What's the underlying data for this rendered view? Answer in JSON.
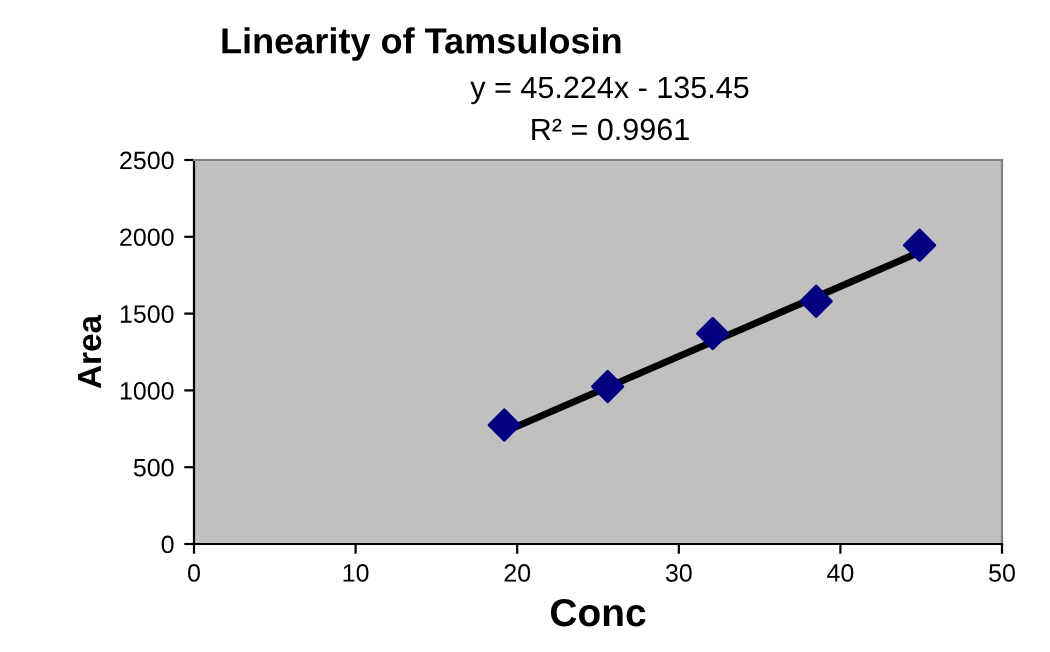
{
  "chart_data": {
    "type": "scatter",
    "title": "Linearity of Tamsulosin",
    "xlabel": "Conc",
    "ylabel": "Area",
    "annotations": [
      "y = 45.224x - 135.45",
      "R² = 0.9961"
    ],
    "series": [
      {
        "color": "#000080",
        "marker": "diamond",
        "x": [
          19.2,
          25.6,
          32.1,
          38.5,
          44.9
        ],
        "values": [
          775,
          1025,
          1370,
          1580,
          1945
        ]
      },
      {
        "type": "line",
        "color": "#000000",
        "marker": "none",
        "line_style": "solid",
        "x": [
          19.2,
          44.9
        ],
        "values": [
          730,
          1900
        ]
      }
    ],
    "xlim": [
      0,
      50
    ],
    "xticks": [
      0,
      10,
      20,
      30,
      40,
      50
    ],
    "ylim": [
      0,
      2500
    ],
    "yticks": [
      0,
      500,
      1000,
      1500,
      2000,
      2500
    ],
    "grid": false,
    "legend": false
  }
}
